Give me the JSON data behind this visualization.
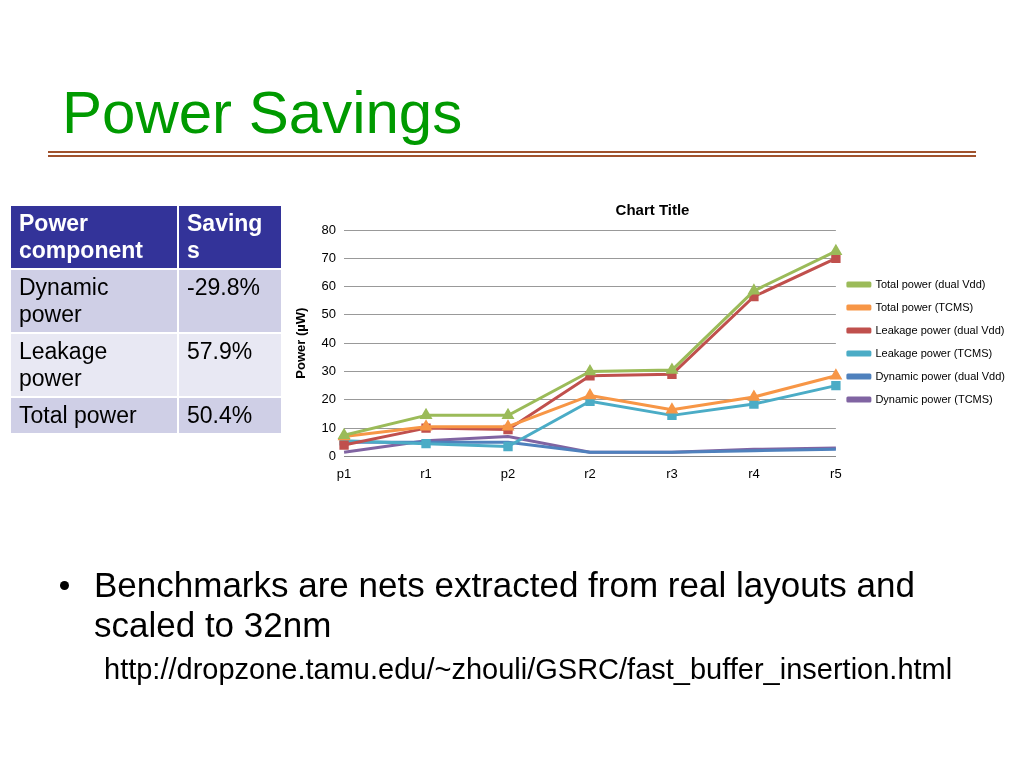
{
  "chart_data": [
    {
      "type": "other",
      "title": "Power Savings",
      "categories": [
        "Power component",
        "Savings"
      ],
      "y_categories": [
        "Dynamic power",
        "Leakage power",
        "Total power"
      ],
      "cell_labels": [
        [
          "-29.8%"
        ],
        [
          "57.9%"
        ],
        [
          "50.4%"
        ]
      ],
      "annotations": [
        "Benchmarks are nets extracted from real layouts and scaled to 32nm",
        "http://dropzone.tamu.edu/~zhouli/GSRC/fast_buffer_insertion.html"
      ]
    },
    {
      "type": "line",
      "title": "Chart Title",
      "ylabel": "Power (µW)",
      "categories": [
        "p1",
        "r1",
        "p2",
        "r2",
        "r3",
        "r4",
        "r5"
      ],
      "ylim": [
        0,
        80
      ],
      "yticks": [
        0,
        10,
        20,
        30,
        40,
        50,
        60,
        70,
        80
      ],
      "grid": "y",
      "legend": "right",
      "series": [
        {
          "name": "Total power (dual Vdd)",
          "color": "#9bbb59",
          "marker": "triangle",
          "values": [
            7.5,
            14.5,
            14.5,
            30,
            30.5,
            58.5,
            72.5
          ]
        },
        {
          "name": "Total power (TCMS)",
          "color": "#f79646",
          "marker": "triangle",
          "values": [
            7,
            10.5,
            10.5,
            21.5,
            16.5,
            21,
            28.5
          ]
        },
        {
          "name": "Leakage power (dual Vdd)",
          "color": "#c0504d",
          "marker": "square",
          "values": [
            4,
            10,
            9.5,
            28.5,
            29,
            56.5,
            70
          ]
        },
        {
          "name": "Leakage power (TCMS)",
          "color": "#4bacc6",
          "marker": "square",
          "values": [
            5.5,
            4.5,
            3.5,
            19.5,
            14.5,
            18.5,
            25
          ]
        },
        {
          "name": "Dynamic power (dual Vdd)",
          "color": "#4f81bd",
          "marker": "none",
          "values": [
            5,
            5,
            5,
            1.5,
            1.5,
            2,
            2.5
          ]
        },
        {
          "name": "Dynamic power (TCMS)",
          "color": "#8064a2",
          "marker": "none",
          "values": [
            1.5,
            5.5,
            7,
            1.5,
            1.5,
            2.5,
            3
          ]
        }
      ]
    }
  ]
}
